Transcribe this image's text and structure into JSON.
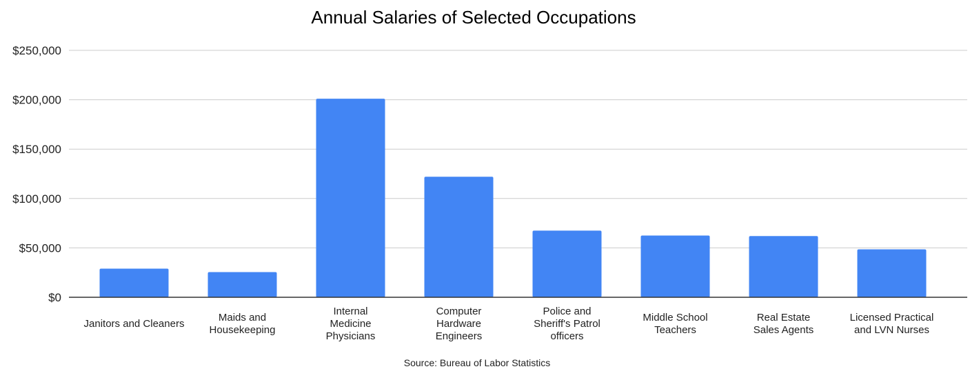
{
  "chart_data": {
    "type": "bar",
    "title": "Annual Salaries of Selected Occupations",
    "categories": [
      [
        "Janitors and Cleaners"
      ],
      [
        "Maids and",
        "Housekeeping"
      ],
      [
        "Internal",
        "Medicine",
        "Physicians"
      ],
      [
        "Computer",
        "Hardware",
        "Engineers"
      ],
      [
        "Police and",
        "Sheriff's Patrol",
        "officers"
      ],
      [
        "Middle School",
        "Teachers"
      ],
      [
        "Real Estate",
        "Sales Agents"
      ],
      [
        "Licensed Practical",
        "and LVN Nurses"
      ]
    ],
    "values": [
      29000,
      25500,
      201000,
      122000,
      67500,
      62500,
      62000,
      48500
    ],
    "ylim": [
      0,
      250000
    ],
    "yticks": [
      0,
      50000,
      100000,
      150000,
      200000,
      250000
    ],
    "ytick_labels": [
      "$0",
      "$50,000",
      "$100,000",
      "$150,000",
      "$200,000",
      "$250,000"
    ],
    "xlabel": "Source: Bureau of Labor Statistics",
    "ylabel": "",
    "grid": true,
    "legend": "none",
    "bar_color": "#4285f4"
  }
}
